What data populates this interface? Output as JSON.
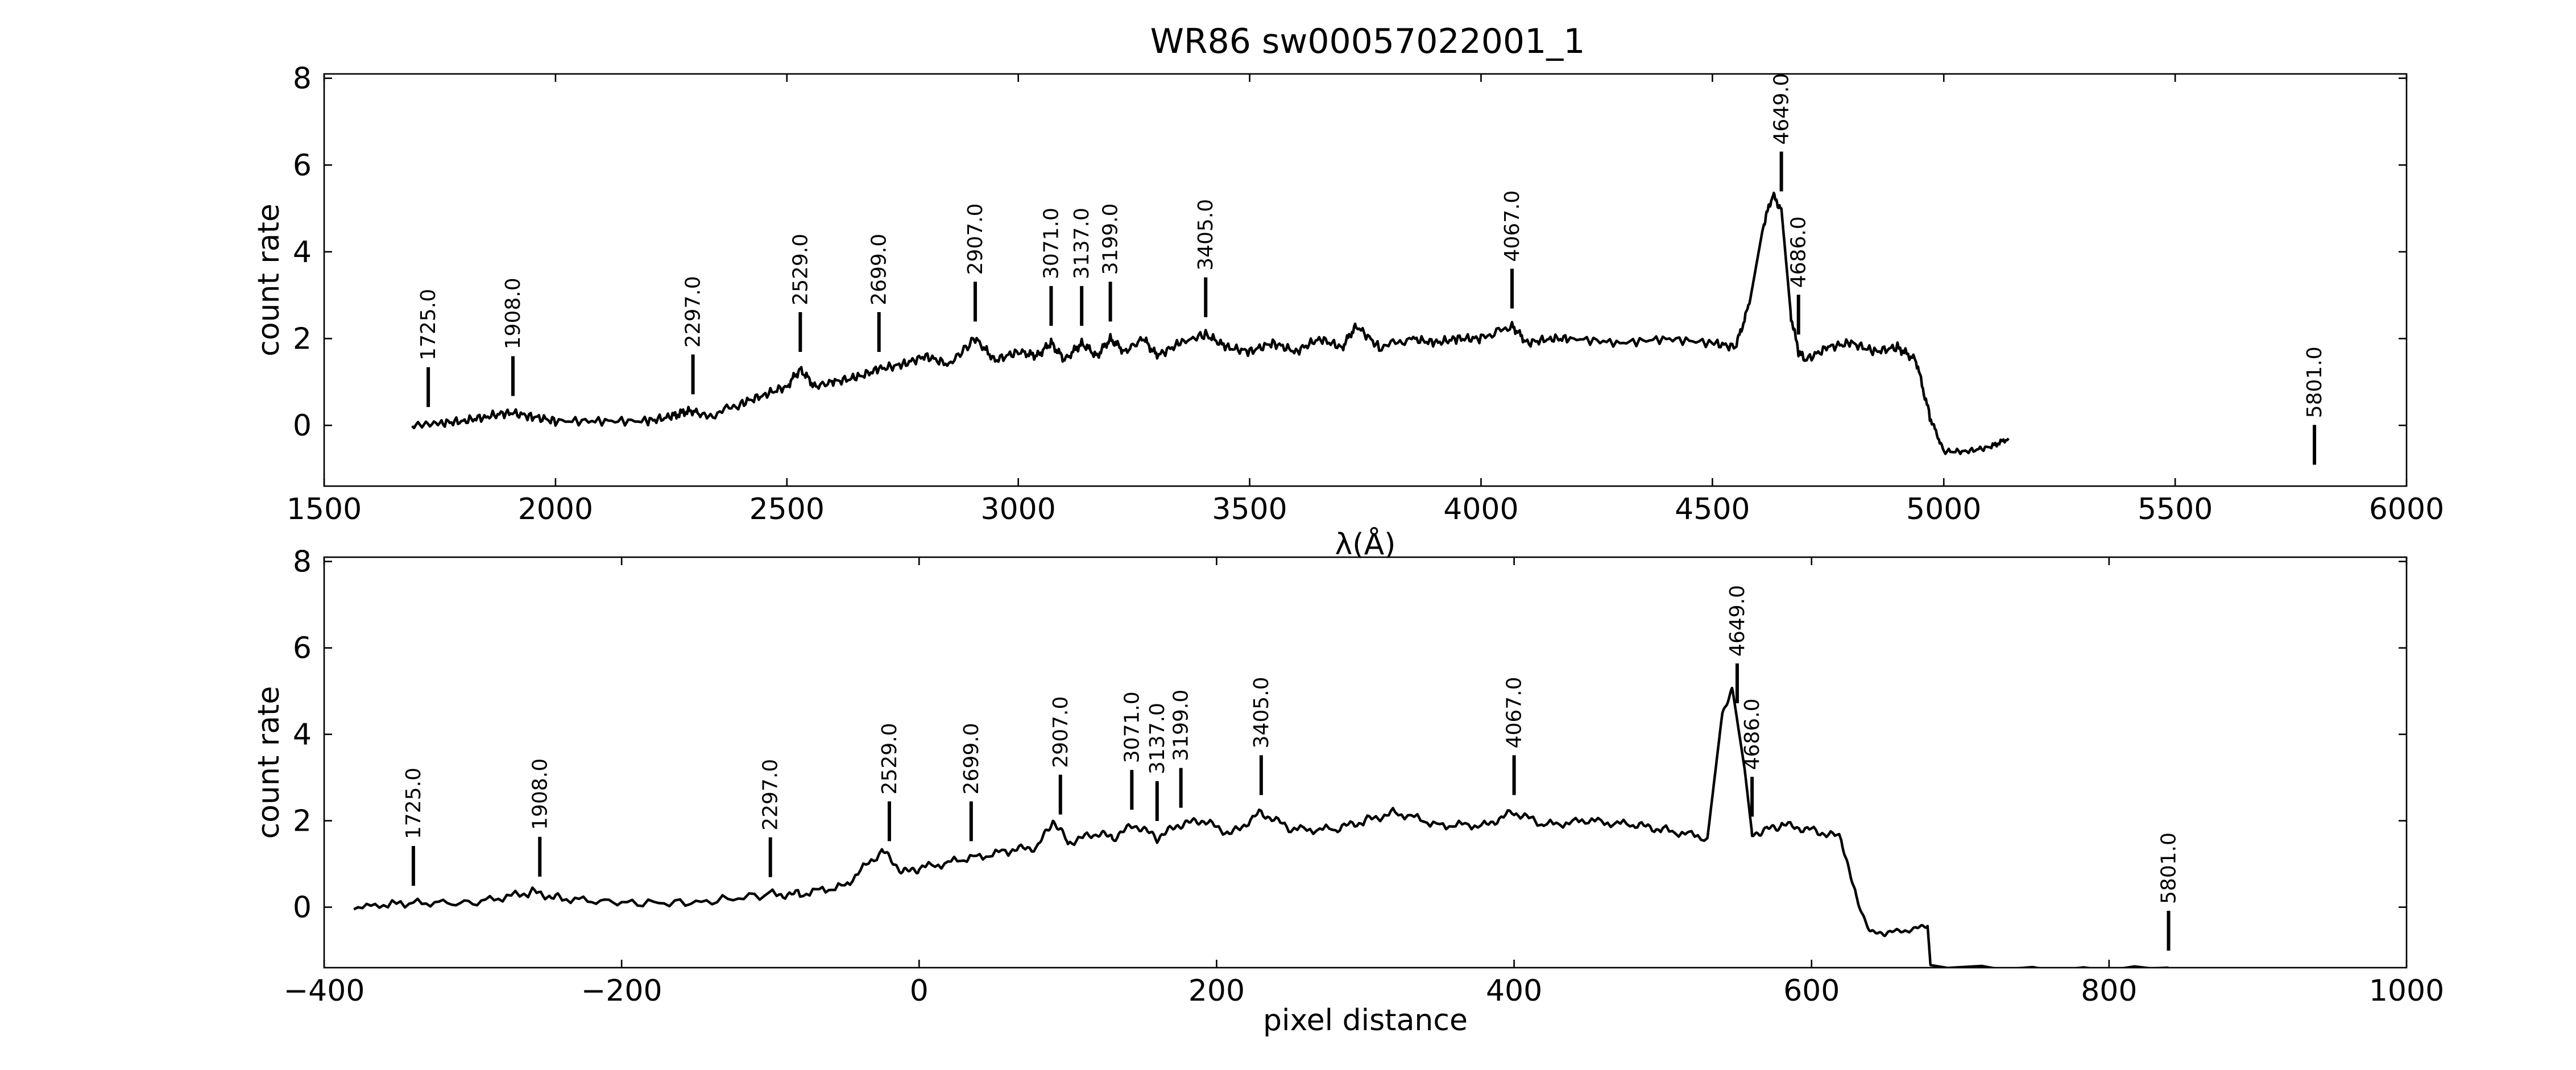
{
  "chart_data": [
    {
      "type": "line",
      "title": "WR86  sw00057022001_1",
      "xlabel": "λ(Å)",
      "ylabel": "count rate",
      "xlim": [
        1500,
        6000
      ],
      "ylim": [
        -1.4,
        8.1
      ],
      "xticks": [
        1500,
        2000,
        2500,
        3000,
        3500,
        4000,
        4500,
        5000,
        5500,
        6000
      ],
      "yticks": [
        0,
        2,
        4,
        6,
        8
      ],
      "series": [
        {
          "x": [
            1690,
            1750,
            1800,
            1850,
            1900,
            1950,
            2000,
            2100,
            2200,
            2250,
            2290,
            2330,
            2400,
            2450,
            2500,
            2529,
            2560,
            2600,
            2650,
            2699,
            2750,
            2800,
            2850,
            2907,
            2950,
            3000,
            3040,
            3071,
            3100,
            3137,
            3170,
            3199,
            3230,
            3270,
            3300,
            3350,
            3405,
            3450,
            3500,
            3550,
            3600,
            3650,
            3700,
            3730,
            3780,
            3850,
            3900,
            3950,
            4000,
            4067,
            4100,
            4150,
            4200,
            4300,
            4400,
            4500,
            4550,
            4580,
            4610,
            4630,
            4649,
            4670,
            4686,
            4700,
            4750,
            4800,
            4850,
            4900,
            4940,
            4970,
            5000,
            5050,
            5100,
            5140
          ],
          "y": [
            0.0,
            0.05,
            0.1,
            0.2,
            0.3,
            0.2,
            0.1,
            0.1,
            0.1,
            0.2,
            0.35,
            0.2,
            0.5,
            0.7,
            0.9,
            1.3,
            0.9,
            1.0,
            1.1,
            1.3,
            1.4,
            1.6,
            1.4,
            2.0,
            1.5,
            1.7,
            1.6,
            1.9,
            1.5,
            1.9,
            1.6,
            2.0,
            1.7,
            2.0,
            1.6,
            1.9,
            2.1,
            1.8,
            1.7,
            1.9,
            1.7,
            2.0,
            1.8,
            2.3,
            1.8,
            2.0,
            1.9,
            2.0,
            2.0,
            2.3,
            1.9,
            2.0,
            2.0,
            1.9,
            2.0,
            1.9,
            1.8,
            2.8,
            4.6,
            5.3,
            5.0,
            2.5,
            1.7,
            1.5,
            1.8,
            1.9,
            1.7,
            1.8,
            1.5,
            0.2,
            -0.6,
            -0.6,
            -0.5,
            -0.3
          ]
        }
      ],
      "annotations": [
        "1725.0",
        "1908.0",
        "2297.0",
        "2529.0",
        "2699.0",
        "2907.0",
        "3071.0",
        "3137.0",
        "3199.0",
        "3405.0",
        "4067.0",
        "4649.0",
        "4686.0",
        "5801.0"
      ],
      "annotation_x": [
        1725,
        1908,
        2297,
        2529,
        2699,
        2907,
        3071,
        3137,
        3199,
        3405,
        4067,
        4649,
        4686,
        5801
      ],
      "grid": false
    },
    {
      "type": "line",
      "xlabel": "pixel distance",
      "ylabel": "count rate",
      "xlim": [
        -400,
        1000
      ],
      "ylim": [
        -1.4,
        8.1
      ],
      "xticks": [
        -400,
        -200,
        0,
        200,
        400,
        600,
        800,
        1000
      ],
      "yticks": [
        0,
        2,
        4,
        6,
        8
      ],
      "series": [
        {
          "x": [
            -380,
            -340,
            -300,
            -260,
            -240,
            -200,
            -150,
            -100,
            -80,
            -50,
            -25,
            -10,
            0,
            30,
            60,
            80,
            90,
            100,
            120,
            130,
            145,
            160,
            175,
            190,
            210,
            230,
            250,
            280,
            300,
            320,
            350,
            380,
            400,
            420,
            450,
            480,
            500,
            530,
            540,
            547,
            555,
            560,
            570,
            580,
            600,
            620,
            630,
            640,
            650,
            670,
            678,
            680,
            840
          ],
          "y": [
            0.0,
            0.1,
            0.1,
            0.35,
            0.2,
            0.1,
            0.1,
            0.3,
            0.3,
            0.5,
            1.3,
            0.8,
            0.9,
            1.1,
            1.3,
            1.4,
            2.0,
            1.5,
            1.7,
            1.6,
            1.9,
            1.6,
            1.9,
            2.0,
            1.7,
            2.2,
            1.8,
            1.8,
            2.0,
            2.2,
            1.9,
            1.9,
            2.2,
            1.9,
            2.0,
            1.9,
            1.8,
            1.6,
            4.5,
            5.0,
            3.2,
            1.7,
            1.8,
            1.9,
            1.8,
            1.6,
            0.2,
            -0.6,
            -0.6,
            -0.5,
            -0.4,
            -1.4,
            -1.4
          ]
        }
      ],
      "annotations": [
        "1725.0",
        "1908.0",
        "2297.0",
        "2529.0",
        "2699.0",
        "2907.0",
        "3071.0",
        "3137.0",
        "3199.0",
        "3405.0",
        "4067.0",
        "4649.0",
        "4686.0",
        "5801.0"
      ],
      "annotation_x": [
        -340,
        -255,
        -100,
        -20,
        35,
        95,
        143,
        160,
        176,
        230,
        400,
        550,
        560,
        840
      ],
      "grid": false
    }
  ]
}
